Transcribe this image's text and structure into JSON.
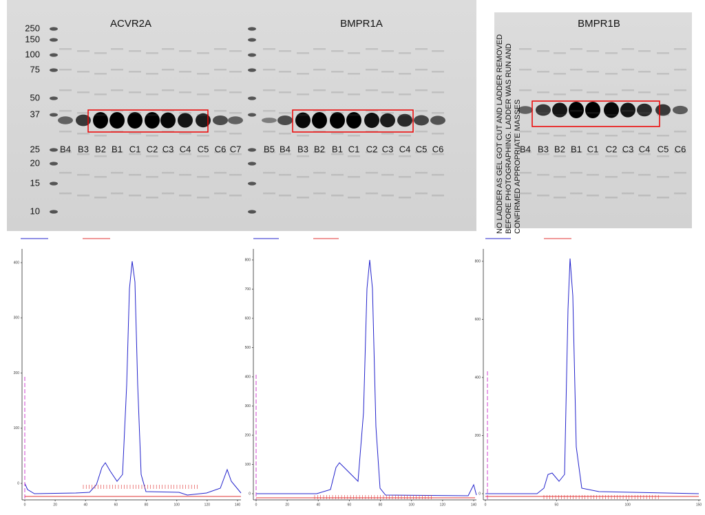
{
  "gels": [
    {
      "title": "ACVR2A",
      "lanes": [
        "B4",
        "B3",
        "B2",
        "B1",
        "C1",
        "C2",
        "C3",
        "C4",
        "C5",
        "C6",
        "C7"
      ]
    },
    {
      "title": "BMPR1A",
      "lanes": [
        "B5",
        "B4",
        "B3",
        "B2",
        "B1",
        "C1",
        "C2",
        "C3",
        "C4",
        "C5",
        "C6"
      ]
    },
    {
      "title": "BMPR1B",
      "lanes": [
        "B4",
        "B3",
        "B2",
        "B1",
        "C1",
        "C2",
        "C3",
        "C4",
        "C5",
        "C6"
      ]
    }
  ],
  "ladder": [
    "250",
    "150",
    "100",
    "75",
    "50",
    "37",
    "25",
    "20",
    "15",
    "10"
  ],
  "note": "NO LADDER AS GEL GOT CUT AND LADDER REMOVED BEFORE PHOTOGRAPHING. LADDER WAS RUN AND CONFIRMED APPROPRIATE MASSES",
  "chromatograms": [
    {
      "yticks": [
        0,
        100,
        200,
        300,
        400
      ],
      "xticks": [
        0,
        20,
        40,
        60,
        80,
        100,
        120,
        140
      ]
    },
    {
      "yticks": [
        0,
        100,
        200,
        300,
        400,
        500,
        600,
        700,
        800
      ],
      "xticks": [
        0,
        20,
        40,
        60,
        80,
        100,
        120,
        140
      ]
    },
    {
      "yticks": [
        0,
        200,
        400,
        600,
        800
      ],
      "xticks": [
        0,
        50,
        100,
        150
      ]
    }
  ]
}
